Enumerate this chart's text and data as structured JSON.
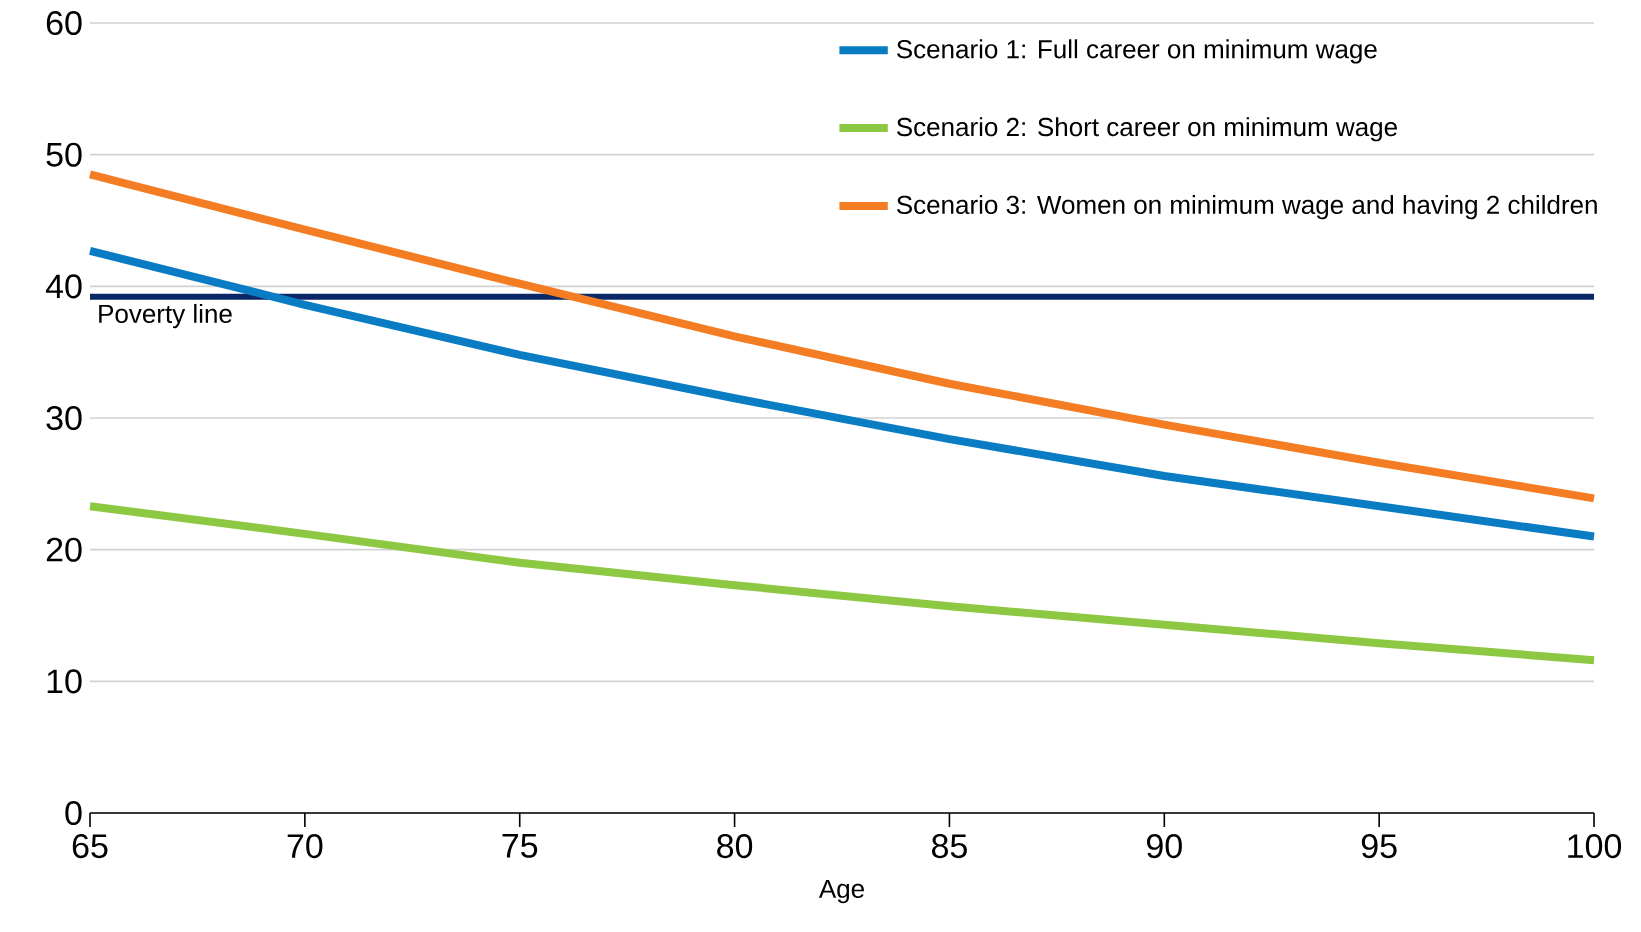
{
  "chart_data": {
    "type": "line",
    "xlabel": "Age",
    "x": [
      65,
      70,
      75,
      80,
      85,
      90,
      95,
      100
    ],
    "series": [
      {
        "name": "Scenario 1: Full career on minimum wage",
        "color": "#0a7cc4",
        "values": [
          42.7,
          38.6,
          34.8,
          31.5,
          28.4,
          25.6,
          23.3,
          21.0
        ]
      },
      {
        "name": "Scenario 2: Short career on minimum wage",
        "color": "#8cc841",
        "values": [
          23.3,
          21.2,
          19.0,
          17.3,
          15.7,
          14.3,
          12.9,
          11.6
        ]
      },
      {
        "name": "Scenario 3: Women on minimum wage and having 2 children",
        "color": "#f47d23",
        "values": [
          48.5,
          44.3,
          40.2,
          36.2,
          32.6,
          29.5,
          26.6,
          23.9
        ]
      }
    ],
    "ref_lines": [
      {
        "axis": "y",
        "value": 39.2,
        "label": "Poverty line",
        "color": "#0b2765"
      }
    ],
    "xlim": [
      65,
      100
    ],
    "xticks": [
      65,
      70,
      75,
      80,
      85,
      90,
      95,
      100
    ],
    "ylim": [
      0,
      60
    ],
    "yticks": [
      0,
      10,
      20,
      30,
      40,
      50,
      60
    ],
    "grid": "y",
    "legend": "top right",
    "marker": "none",
    "line_style": "solid"
  }
}
